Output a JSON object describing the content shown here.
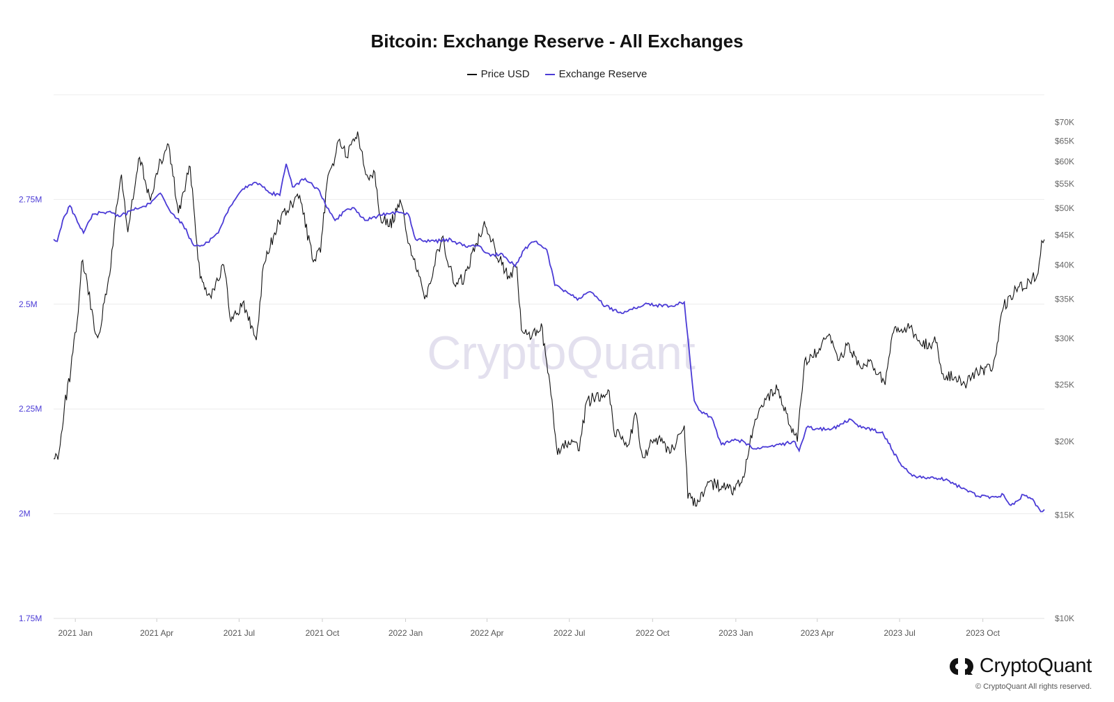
{
  "colors": {
    "price": "#111111",
    "reserve": "#4b3bd6",
    "grid": "#ececec",
    "watermark": "#e3e0ee",
    "left_axis": "#4b3bd6",
    "right_axis": "#666666"
  },
  "brand": {
    "name": "CryptoQuant",
    "copyright": "© CryptoQuant All rights reserved.",
    "watermark": "CryptoQuant",
    "icon": "cryptoquant-logo-icon"
  },
  "chart_data": {
    "type": "line",
    "title": "Bitcoin: Exchange Reserve - All Exchanges",
    "legend_position": "top-center",
    "grid": true,
    "x_tick_labels": [
      "2021 Jan",
      "2021 Apr",
      "2021 Jul",
      "2021 Oct",
      "2022 Jan",
      "2022 Apr",
      "2022 Jul",
      "2022 Oct",
      "2023 Jan",
      "2023 Apr",
      "2023 Jul",
      "2023 Oct"
    ],
    "x_range": [
      "2020-12-08",
      "2023-12-08"
    ],
    "y_left": {
      "ticks": [
        "1.75M",
        "2M",
        "2.25M",
        "2.5M",
        "2.75M"
      ],
      "tick_values": [
        1750000,
        2000000,
        2250000,
        2500000,
        2750000
      ],
      "range": [
        1750000,
        3000000
      ]
    },
    "y_right": {
      "ticks": [
        "$10K",
        "$15K",
        "$20K",
        "$25K",
        "$30K",
        "$35K",
        "$40K",
        "$45K",
        "$50K",
        "$55K",
        "$60K",
        "$65K",
        "$70K"
      ],
      "tick_values": [
        10000,
        15000,
        20000,
        25000,
        30000,
        35000,
        40000,
        45000,
        50000,
        55000,
        60000,
        65000,
        70000
      ],
      "range": [
        10000,
        78000
      ],
      "scale": "log"
    },
    "series": [
      {
        "name": "Price USD",
        "axis": "right",
        "points": [
          [
            "2020-12-08",
            18700
          ],
          [
            "2020-12-14",
            19200
          ],
          [
            "2020-12-20",
            23000
          ],
          [
            "2020-12-27",
            26500
          ],
          [
            "2021-01-03",
            32000
          ],
          [
            "2021-01-08",
            40500
          ],
          [
            "2021-01-14",
            37500
          ],
          [
            "2021-01-22",
            31000
          ],
          [
            "2021-01-27",
            30500
          ],
          [
            "2021-02-08",
            38500
          ],
          [
            "2021-02-14",
            48000
          ],
          [
            "2021-02-21",
            57000
          ],
          [
            "2021-02-28",
            45500
          ],
          [
            "2021-03-13",
            61000
          ],
          [
            "2021-03-25",
            51500
          ],
          [
            "2021-04-03",
            58500
          ],
          [
            "2021-04-14",
            64200
          ],
          [
            "2021-04-25",
            49000
          ],
          [
            "2021-05-08",
            58800
          ],
          [
            "2021-05-19",
            38000
          ],
          [
            "2021-05-30",
            35500
          ],
          [
            "2021-06-14",
            40000
          ],
          [
            "2021-06-22",
            32000
          ],
          [
            "2021-07-05",
            34500
          ],
          [
            "2021-07-20",
            29800
          ],
          [
            "2021-07-28",
            40000
          ],
          [
            "2021-08-14",
            47500
          ],
          [
            "2021-08-23",
            49500
          ],
          [
            "2021-09-06",
            52500
          ],
          [
            "2021-09-21",
            40500
          ],
          [
            "2021-09-29",
            42000
          ],
          [
            "2021-10-06",
            55000
          ],
          [
            "2021-10-20",
            65500
          ],
          [
            "2021-10-28",
            61000
          ],
          [
            "2021-11-09",
            67500
          ],
          [
            "2021-11-18",
            57000
          ],
          [
            "2021-11-28",
            57500
          ],
          [
            "2021-12-04",
            48500
          ],
          [
            "2021-12-14",
            46500
          ],
          [
            "2021-12-27",
            51000
          ],
          [
            "2022-01-05",
            43500
          ],
          [
            "2022-01-22",
            35000
          ],
          [
            "2022-02-10",
            44500
          ],
          [
            "2022-02-24",
            37000
          ],
          [
            "2022-03-07",
            38000
          ],
          [
            "2022-03-29",
            47500
          ],
          [
            "2022-04-10",
            42500
          ],
          [
            "2022-04-26",
            38000
          ],
          [
            "2022-05-04",
            39700
          ],
          [
            "2022-05-09",
            31000
          ],
          [
            "2022-05-20",
            30000
          ],
          [
            "2022-05-31",
            31800
          ],
          [
            "2022-06-13",
            22500
          ],
          [
            "2022-06-18",
            19000
          ],
          [
            "2022-06-30",
            20000
          ],
          [
            "2022-07-12",
            19300
          ],
          [
            "2022-07-20",
            23400
          ],
          [
            "2022-07-30",
            23800
          ],
          [
            "2022-08-14",
            24400
          ],
          [
            "2022-08-19",
            21000
          ],
          [
            "2022-09-05",
            19800
          ],
          [
            "2022-09-12",
            22400
          ],
          [
            "2022-09-20",
            18800
          ],
          [
            "2022-10-05",
            20300
          ],
          [
            "2022-10-20",
            19100
          ],
          [
            "2022-10-30",
            20600
          ],
          [
            "2022-11-05",
            21300
          ],
          [
            "2022-11-09",
            16000
          ],
          [
            "2022-11-21",
            15800
          ],
          [
            "2022-12-01",
            17100
          ],
          [
            "2022-12-18",
            16700
          ],
          [
            "2022-12-31",
            16550
          ],
          [
            "2023-01-10",
            17400
          ],
          [
            "2023-01-20",
            21000
          ],
          [
            "2023-02-02",
            23700
          ],
          [
            "2023-02-16",
            24500
          ],
          [
            "2023-03-10",
            20000
          ],
          [
            "2023-03-18",
            27500
          ],
          [
            "2023-04-02",
            28300
          ],
          [
            "2023-04-13",
            30300
          ],
          [
            "2023-04-25",
            27500
          ],
          [
            "2023-05-05",
            29500
          ],
          [
            "2023-05-15",
            27000
          ],
          [
            "2023-06-01",
            27000
          ],
          [
            "2023-06-15",
            25000
          ],
          [
            "2023-06-23",
            30500
          ],
          [
            "2023-07-13",
            31400
          ],
          [
            "2023-07-25",
            29200
          ],
          [
            "2023-08-10",
            29500
          ],
          [
            "2023-08-18",
            26100
          ],
          [
            "2023-09-01",
            25800
          ],
          [
            "2023-09-11",
            25100
          ],
          [
            "2023-09-25",
            26300
          ],
          [
            "2023-10-12",
            26700
          ],
          [
            "2023-10-24",
            34000
          ],
          [
            "2023-11-09",
            36700
          ],
          [
            "2023-11-22",
            37400
          ],
          [
            "2023-12-01",
            38700
          ],
          [
            "2023-12-05",
            44000
          ],
          [
            "2023-12-08",
            44200
          ]
        ]
      },
      {
        "name": "Exchange Reserve",
        "axis": "left",
        "points": [
          [
            "2020-12-08",
            2655000
          ],
          [
            "2020-12-12",
            2650000
          ],
          [
            "2020-12-18",
            2700000
          ],
          [
            "2020-12-26",
            2735000
          ],
          [
            "2021-01-05",
            2690000
          ],
          [
            "2021-01-10",
            2670000
          ],
          [
            "2021-01-20",
            2715000
          ],
          [
            "2021-02-05",
            2720000
          ],
          [
            "2021-02-20",
            2710000
          ],
          [
            "2021-03-05",
            2725000
          ],
          [
            "2021-03-25",
            2740000
          ],
          [
            "2021-04-05",
            2765000
          ],
          [
            "2021-04-15",
            2725000
          ],
          [
            "2021-04-30",
            2690000
          ],
          [
            "2021-05-12",
            2640000
          ],
          [
            "2021-05-22",
            2640000
          ],
          [
            "2021-06-08",
            2670000
          ],
          [
            "2021-06-20",
            2730000
          ],
          [
            "2021-07-05",
            2775000
          ],
          [
            "2021-07-20",
            2790000
          ],
          [
            "2021-08-05",
            2765000
          ],
          [
            "2021-08-15",
            2760000
          ],
          [
            "2021-08-22",
            2835000
          ],
          [
            "2021-08-29",
            2780000
          ],
          [
            "2021-09-12",
            2800000
          ],
          [
            "2021-09-28",
            2770000
          ],
          [
            "2021-10-04",
            2740000
          ],
          [
            "2021-10-15",
            2700000
          ],
          [
            "2021-10-27",
            2725000
          ],
          [
            "2021-11-05",
            2730000
          ],
          [
            "2021-11-17",
            2700000
          ],
          [
            "2021-12-01",
            2710000
          ],
          [
            "2021-12-18",
            2720000
          ],
          [
            "2022-01-04",
            2715000
          ],
          [
            "2022-01-12",
            2655000
          ],
          [
            "2022-02-02",
            2650000
          ],
          [
            "2022-02-20",
            2655000
          ],
          [
            "2022-03-05",
            2640000
          ],
          [
            "2022-03-22",
            2640000
          ],
          [
            "2022-04-05",
            2615000
          ],
          [
            "2022-04-18",
            2620000
          ],
          [
            "2022-05-02",
            2590000
          ],
          [
            "2022-05-12",
            2630000
          ],
          [
            "2022-05-24",
            2650000
          ],
          [
            "2022-06-06",
            2630000
          ],
          [
            "2022-06-15",
            2545000
          ],
          [
            "2022-06-28",
            2530000
          ],
          [
            "2022-07-10",
            2510000
          ],
          [
            "2022-07-24",
            2530000
          ],
          [
            "2022-08-10",
            2495000
          ],
          [
            "2022-08-28",
            2478000
          ],
          [
            "2022-09-12",
            2490000
          ],
          [
            "2022-09-22",
            2500000
          ],
          [
            "2022-10-05",
            2498000
          ],
          [
            "2022-10-20",
            2495000
          ],
          [
            "2022-11-05",
            2505000
          ],
          [
            "2022-11-09",
            2420000
          ],
          [
            "2022-11-16",
            2270000
          ],
          [
            "2022-11-23",
            2245000
          ],
          [
            "2022-12-05",
            2230000
          ],
          [
            "2022-12-16",
            2165000
          ],
          [
            "2022-12-31",
            2178000
          ],
          [
            "2023-01-11",
            2170000
          ],
          [
            "2023-01-22",
            2155000
          ],
          [
            "2023-02-12",
            2160000
          ],
          [
            "2023-03-06",
            2173000
          ],
          [
            "2023-03-12",
            2150000
          ],
          [
            "2023-03-20",
            2205000
          ],
          [
            "2023-04-15",
            2200000
          ],
          [
            "2023-05-08",
            2225000
          ],
          [
            "2023-05-20",
            2205000
          ],
          [
            "2023-06-12",
            2195000
          ],
          [
            "2023-06-30",
            2125000
          ],
          [
            "2023-07-15",
            2090000
          ],
          [
            "2023-08-10",
            2085000
          ],
          [
            "2023-08-25",
            2078000
          ],
          [
            "2023-09-08",
            2060000
          ],
          [
            "2023-09-25",
            2042000
          ],
          [
            "2023-10-10",
            2040000
          ],
          [
            "2023-10-24",
            2045000
          ],
          [
            "2023-11-01",
            2020000
          ],
          [
            "2023-11-15",
            2045000
          ],
          [
            "2023-11-25",
            2035000
          ],
          [
            "2023-12-04",
            2005000
          ],
          [
            "2023-12-08",
            2010000
          ]
        ]
      }
    ]
  }
}
